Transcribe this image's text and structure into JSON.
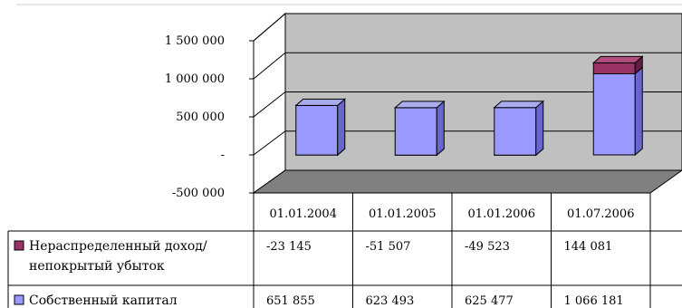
{
  "chart_data": {
    "type": "bar",
    "stacked": true,
    "three_d": true,
    "categories": [
      "01.01.2004",
      "01.01.2005",
      "01.01.2006",
      "01.07.2006"
    ],
    "series": [
      {
        "name": "Собственный капитал",
        "values": [
          651855,
          623493,
          625477,
          1066181
        ],
        "display": [
          "651 855",
          "623 493",
          "625 477",
          "1 066 181"
        ],
        "color": "#9999ff"
      },
      {
        "name": "Нераспределенный доход/ непокрытый убыток",
        "name_lines": [
          "Нераспределенный доход/",
          "непокрытый убыток"
        ],
        "values": [
          -23145,
          -51507,
          -49523,
          144081
        ],
        "display": [
          "-23 145",
          "-51 507",
          "-49 523",
          "144 081"
        ],
        "color": "#993366"
      }
    ],
    "yticks": [
      {
        "value": 1500000,
        "label": "1 500 000"
      },
      {
        "value": 1000000,
        "label": "1 000 000"
      },
      {
        "value": 500000,
        "label": "500 000"
      },
      {
        "value": 0,
        "label": "-"
      },
      {
        "value": -500000,
        "label": "-500 000"
      }
    ],
    "ylim": [
      -500000,
      1500000
    ],
    "grid": true,
    "legend": "data-table"
  }
}
